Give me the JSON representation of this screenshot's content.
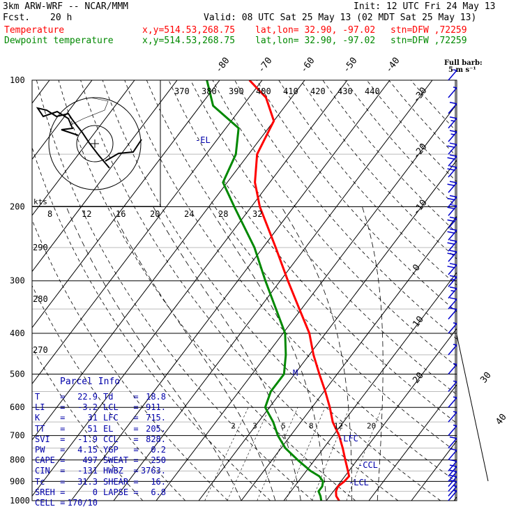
{
  "header": {
    "model": "3km ARW-WRF -- NCAR/MMM",
    "init": "Init: 12 UTC Fri 24 May 13",
    "fcst_label": "Fcst.",
    "fcst_value": "20 h",
    "valid": "Valid: 08 UTC Sat 25 May 13 (02 MDT Sat 25 May 13)",
    "temp_label": "Temperature",
    "dew_label": "Dewpoint temperature",
    "xy": "x,y=514.53,268.75",
    "latlon": "lat,lon= 32.90, -97.02",
    "stn": "stn=DFW ,72259",
    "temp_color": "#ff0000",
    "dew_color": "#008800"
  },
  "barb_note": {
    "line1": "Full barb:",
    "line2": "5 m s⁻¹"
  },
  "parcel": {
    "title": "Parcel Info",
    "rows": [
      [
        "T",
        "22.9",
        "Td",
        "18.8"
      ],
      [
        "LI",
        "-3.2",
        "LCL",
        "911."
      ],
      [
        "K",
        "31",
        "LFC",
        "715."
      ],
      [
        "TT",
        "51",
        "EL",
        "205."
      ],
      [
        "SVI",
        "-1.9",
        "CCL",
        "828."
      ],
      [
        "PW",
        "4.15",
        "YGP",
        "0.2"
      ],
      [
        "CAPE",
        "497",
        "SWEAT",
        "250"
      ],
      [
        "CIN",
        "-131",
        "HWBZ",
        "3763."
      ],
      [
        "Tc",
        "31.3",
        "SHEAR",
        "16."
      ],
      [
        "SREH",
        "0",
        "LAPSE",
        "6.8"
      ],
      [
        "CELL",
        "170/10",
        "",
        ""
      ]
    ]
  },
  "chart_data": {
    "type": "line",
    "title": "",
    "y_axis": "pressure (hPa), log scale",
    "pressure_ticks": [
      100,
      200,
      300,
      400,
      500,
      600,
      700,
      800,
      900,
      1000
    ],
    "isotherm_labels": [
      -80,
      -70,
      -60,
      -50,
      -40,
      -30,
      -20,
      -10,
      0,
      10,
      20,
      30,
      40
    ],
    "theta_labels": [
      370,
      380,
      390,
      400,
      410,
      420,
      430,
      440
    ],
    "theta_labels_left": [
      290,
      280,
      270
    ],
    "mixing_ratio_labels": [
      2,
      3,
      5,
      8,
      12,
      20
    ],
    "wind_axis_ticks": [
      "8",
      "12",
      "16",
      "20",
      "24",
      "28",
      "32"
    ],
    "wind_axis_unit": "kts",
    "level_markers": [
      "-EL",
      "M",
      "-LFC",
      "-CCL",
      "-LCL"
    ],
    "series": [
      {
        "name": "Temperature",
        "color": "#ff0000",
        "points": [
          [
            1000,
            23.0
          ],
          [
            975,
            21.5
          ],
          [
            950,
            20.6
          ],
          [
            925,
            20.2
          ],
          [
            900,
            20.8
          ],
          [
            875,
            21.0
          ],
          [
            850,
            19.8
          ],
          [
            800,
            17.2
          ],
          [
            750,
            14.5
          ],
          [
            700,
            11.4
          ],
          [
            650,
            7.5
          ],
          [
            600,
            4.2
          ],
          [
            550,
            0.3
          ],
          [
            500,
            -4.2
          ],
          [
            450,
            -9.0
          ],
          [
            400,
            -13.8
          ],
          [
            350,
            -20.5
          ],
          [
            300,
            -28.2
          ],
          [
            250,
            -37.0
          ],
          [
            200,
            -48.0
          ],
          [
            175,
            -53.5
          ],
          [
            150,
            -58.0
          ],
          [
            125,
            -60.0
          ],
          [
            110,
            -66.0
          ],
          [
            100,
            -73.0
          ]
        ]
      },
      {
        "name": "Dewpoint temperature",
        "color": "#008800",
        "points": [
          [
            1000,
            18.8
          ],
          [
            975,
            17.8
          ],
          [
            950,
            16.5
          ],
          [
            925,
            16.5
          ],
          [
            900,
            15.8
          ],
          [
            875,
            14.0
          ],
          [
            850,
            11.0
          ],
          [
            800,
            6.0
          ],
          [
            750,
            1.0
          ],
          [
            700,
            -3.0
          ],
          [
            650,
            -6.5
          ],
          [
            600,
            -11.0
          ],
          [
            550,
            -12.5
          ],
          [
            500,
            -12.5
          ],
          [
            450,
            -15.5
          ],
          [
            400,
            -19.5
          ],
          [
            350,
            -26.0
          ],
          [
            300,
            -33.5
          ],
          [
            250,
            -42.0
          ],
          [
            200,
            -54.0
          ],
          [
            175,
            -61.0
          ],
          [
            150,
            -63.0
          ],
          [
            130,
            -67.0
          ],
          [
            115,
            -77.0
          ],
          [
            100,
            -83.0
          ]
        ]
      }
    ],
    "wind_barbs": [
      {
        "p": 1000,
        "speed": 5
      },
      {
        "p": 975,
        "speed": 5
      },
      {
        "p": 950,
        "speed": 10
      },
      {
        "p": 925,
        "speed": 10
      },
      {
        "p": 900,
        "speed": 10
      },
      {
        "p": 875,
        "speed": 10
      },
      {
        "p": 850,
        "speed": 10
      },
      {
        "p": 800,
        "speed": 10
      },
      {
        "p": 750,
        "speed": 10
      },
      {
        "p": 700,
        "speed": 5
      },
      {
        "p": 650,
        "speed": 5
      },
      {
        "p": 600,
        "speed": 5
      },
      {
        "p": 550,
        "speed": 5
      },
      {
        "p": 500,
        "speed": 5
      },
      {
        "p": 450,
        "speed": 5
      },
      {
        "p": 400,
        "speed": 5
      },
      {
        "p": 370,
        "speed": 10
      },
      {
        "p": 350,
        "speed": 10
      },
      {
        "p": 330,
        "speed": 15
      },
      {
        "p": 310,
        "speed": 15
      },
      {
        "p": 290,
        "speed": 20
      },
      {
        "p": 270,
        "speed": 20
      },
      {
        "p": 255,
        "speed": 20
      },
      {
        "p": 240,
        "speed": 20
      },
      {
        "p": 225,
        "speed": 20
      },
      {
        "p": 210,
        "speed": 20
      },
      {
        "p": 200,
        "speed": 20
      },
      {
        "p": 185,
        "speed": 20
      },
      {
        "p": 170,
        "speed": 20
      },
      {
        "p": 160,
        "speed": 20
      },
      {
        "p": 150,
        "speed": 20
      },
      {
        "p": 140,
        "speed": 15
      },
      {
        "p": 130,
        "speed": 15
      },
      {
        "p": 120,
        "speed": 10
      },
      {
        "p": 110,
        "speed": 5
      },
      {
        "p": 100,
        "speed": 5
      }
    ]
  }
}
